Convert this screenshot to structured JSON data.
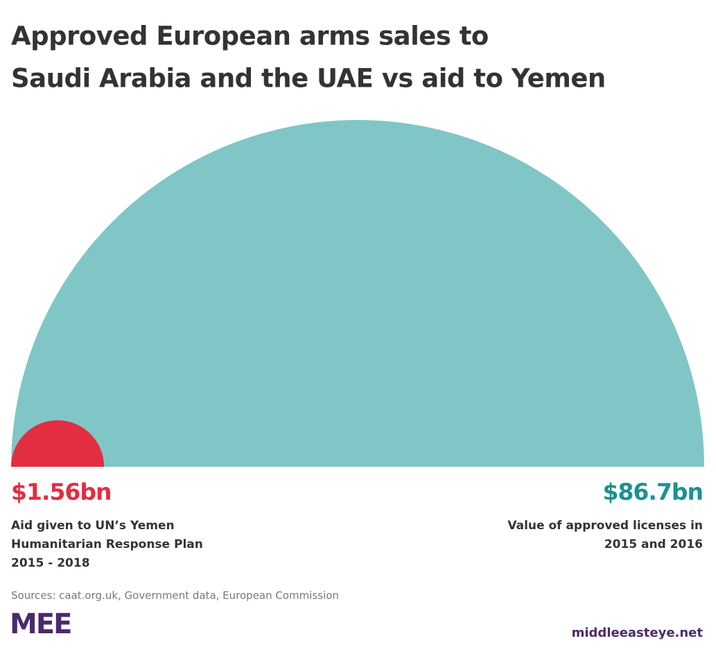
{
  "chart_data": {
    "type": "semicircle",
    "title": [
      "Approved European arms sales to",
      "Saudi Arabia and the UAE vs aid to Yemen"
    ],
    "items": [
      {
        "value": 1.56,
        "value_label": "$1.56bn",
        "color": "#e32d40",
        "label_color": "#e32d40",
        "label": [
          "Aid given to UN’s Yemen",
          "Humanitarian Response Plan",
          "2015 - 2018"
        ]
      },
      {
        "value": 86.7,
        "value_label": "$86.7bn",
        "color": "#80c6c6",
        "label_color": "#1b9191",
        "label": [
          "Value of approved licenses in",
          "2015 and 2016"
        ]
      }
    ],
    "source": "Sources: caat.org.uk, Government data, European Commission",
    "logo": "MEE",
    "site": "middleeasteye.net"
  }
}
